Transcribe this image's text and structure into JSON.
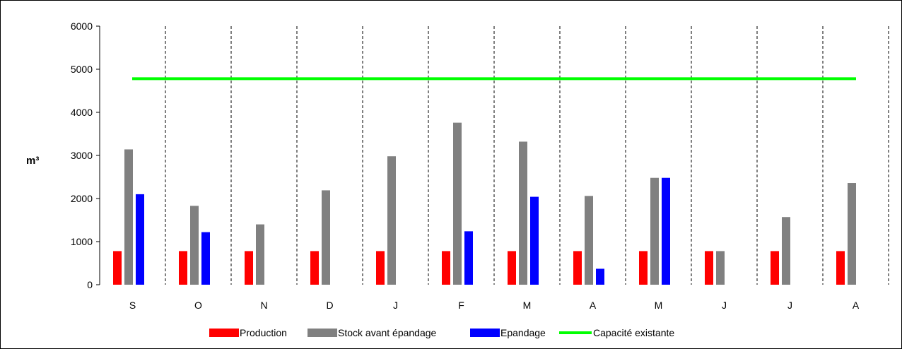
{
  "chart_data": {
    "type": "bar",
    "ylabel": "m³",
    "ylim": [
      0,
      6000
    ],
    "yticks": [
      0,
      1000,
      2000,
      3000,
      4000,
      5000,
      6000
    ],
    "categories": [
      "S",
      "O",
      "N",
      "D",
      "J",
      "F",
      "M",
      "A",
      "M",
      "J",
      "J",
      "A"
    ],
    "series": [
      {
        "name": "Production",
        "color": "#ff0000",
        "values": [
          780,
          780,
          780,
          780,
          780,
          780,
          780,
          780,
          780,
          780,
          780,
          780
        ]
      },
      {
        "name": "Stock avant épandage",
        "color": "#808080",
        "values": [
          3140,
          1830,
          1400,
          2190,
          2980,
          3760,
          3320,
          2060,
          2480,
          780,
          1570,
          2360
        ]
      },
      {
        "name": "Epandage",
        "color": "#0000ff",
        "values": [
          2100,
          1220,
          0,
          0,
          0,
          1240,
          2040,
          370,
          2480,
          0,
          0,
          0
        ]
      }
    ],
    "line_series": {
      "name": "Capacité existante",
      "color": "#00ff00",
      "value": 4780
    },
    "legend_position": "bottom",
    "grid": "dashed vertical separators between months"
  }
}
